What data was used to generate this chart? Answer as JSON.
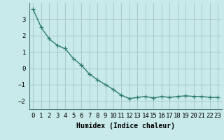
{
  "x": [
    0,
    1,
    2,
    3,
    4,
    5,
    6,
    7,
    8,
    9,
    10,
    11,
    12,
    13,
    14,
    15,
    16,
    17,
    18,
    19,
    20,
    21,
    22,
    23
  ],
  "y": [
    3.6,
    2.5,
    1.8,
    1.4,
    1.2,
    0.6,
    0.2,
    -0.35,
    -0.7,
    -1.0,
    -1.3,
    -1.65,
    -1.85,
    -1.78,
    -1.72,
    -1.82,
    -1.72,
    -1.78,
    -1.72,
    -1.68,
    -1.72,
    -1.72,
    -1.78,
    -1.78
  ],
  "line_color": "#2e7d6e",
  "marker": "+",
  "bg_color": "#c8eaea",
  "grid_color": "#aac8c8",
  "xlabel": "Humidex (Indice chaleur)",
  "ylim": [
    -2.5,
    4.0
  ],
  "xlim": [
    -0.5,
    23.5
  ],
  "yticks": [
    -2,
    -1,
    0,
    1,
    2,
    3
  ],
  "xtick_labels": [
    "0",
    "1",
    "2",
    "3",
    "4",
    "5",
    "6",
    "7",
    "8",
    "9",
    "10",
    "11",
    "12",
    "13",
    "14",
    "15",
    "16",
    "17",
    "18",
    "19",
    "20",
    "21",
    "22",
    "23"
  ],
  "xlabel_fontsize": 7,
  "tick_fontsize": 6.5,
  "line_width": 1.0,
  "marker_size": 4
}
